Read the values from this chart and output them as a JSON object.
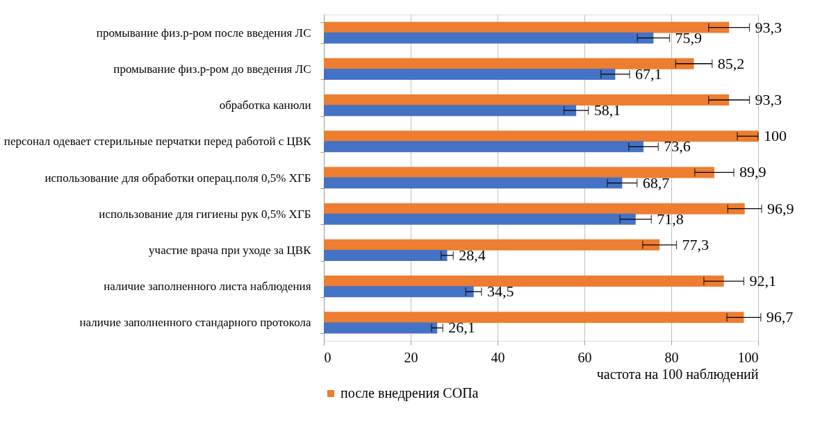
{
  "chart_data": {
    "type": "bar",
    "orientation": "horizontal",
    "xlabel": "частота на 100 наблюдений",
    "categories": [
      "промывание физ.р-ром после введения ЛС",
      "промывание физ.р-ром до введения ЛС",
      "обработка канюли",
      "персонал одевает стерильные перчатки перед работой с ЦВК",
      "использование для обработки операц.поля 0,5% ХГБ",
      "использование для гигиены рук 0,5% ХГБ",
      "участие врача при уходе за ЦВК",
      "наличие заполненного листа наблюдения",
      "наличие заполненного стандарного протокола"
    ],
    "series": [
      {
        "name": "после внедрения СОПа",
        "color": "#ed7d31",
        "values": [
          93.3,
          85.2,
          93.3,
          100,
          89.9,
          96.9,
          77.3,
          92.1,
          96.7
        ],
        "value_labels": [
          "93,3",
          "85,2",
          "93,3",
          "100",
          "89,9",
          "96,9",
          "77,3",
          "92,1",
          "96,7"
        ],
        "errors": [
          4.7,
          4.2,
          4.7,
          [
            95.2,
            100
          ],
          4.5,
          3.9,
          3.9,
          4.6,
          3.9
        ]
      },
      {
        "color": "#4472c4",
        "values": [
          75.9,
          67.1,
          58.1,
          73.6,
          68.7,
          71.8,
          28.4,
          34.5,
          26.1
        ],
        "value_labels": [
          "75,9",
          "67,1",
          "58,1",
          "73,6",
          "68,7",
          "71,8",
          "28,4",
          "34,5",
          "26,1"
        ],
        "errors": [
          3.7,
          3.3,
          2.8,
          3.4,
          3.4,
          3.6,
          1.4,
          1.8,
          1.3
        ]
      }
    ],
    "xlim": [
      0,
      100
    ],
    "xticks": [
      0,
      20,
      40,
      60,
      80,
      100
    ],
    "grid": "x",
    "legend": "bottom"
  }
}
